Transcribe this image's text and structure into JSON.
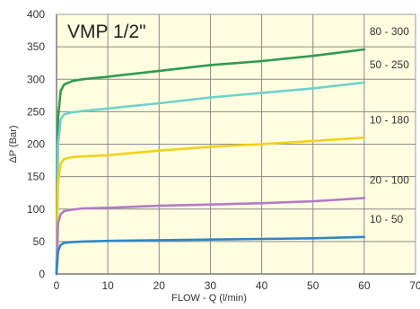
{
  "chart_data": {
    "type": "line",
    "title": "VMP 1/2\"",
    "xlabel": "FLOW - Q (l/min)",
    "ylabel": "ΔP (Bar)",
    "xlim": [
      0,
      70
    ],
    "ylim": [
      0,
      400
    ],
    "xticks": [
      "0",
      "10",
      "20",
      "30",
      "40",
      "50",
      "60",
      "70"
    ],
    "yticks": [
      "0",
      "50",
      "100",
      "150",
      "200",
      "250",
      "300",
      "350",
      "400"
    ],
    "grid": true,
    "colors": {
      "background": "#fffde0",
      "grid": "#8a8a8a",
      "axis": "#3a3a3a"
    },
    "series": [
      {
        "name": "80 - 300",
        "color": "#2f9a52",
        "x": [
          0,
          0.3,
          0.8,
          1.5,
          3,
          5,
          10,
          20,
          30,
          40,
          50,
          60
        ],
        "y": [
          0,
          240,
          282,
          292,
          297,
          300,
          304,
          313,
          322,
          328,
          336,
          346
        ]
      },
      {
        "name": "50 - 250",
        "color": "#6fd1cd",
        "x": [
          0,
          0.3,
          0.8,
          1.5,
          3,
          5,
          10,
          20,
          30,
          40,
          50,
          60
        ],
        "y": [
          0,
          200,
          238,
          246,
          249,
          251,
          255,
          263,
          272,
          279,
          286,
          295
        ]
      },
      {
        "name": "10 - 180",
        "color": "#f2d21a",
        "x": [
          0,
          0.3,
          0.8,
          1.5,
          3,
          5,
          10,
          20,
          30,
          40,
          50,
          60
        ],
        "y": [
          0,
          140,
          170,
          177,
          180,
          181,
          183,
          190,
          196,
          200,
          205,
          210
        ]
      },
      {
        "name": "20 - 100",
        "color": "#b07cc8",
        "x": [
          0,
          0.3,
          0.8,
          1.5,
          3,
          5,
          10,
          20,
          30,
          40,
          50,
          60
        ],
        "y": [
          0,
          78,
          92,
          97,
          99,
          101,
          102,
          105,
          107,
          109,
          112,
          117
        ]
      },
      {
        "name": "10 - 50",
        "color": "#2e86c7",
        "x": [
          0,
          0.3,
          0.8,
          1.5,
          3,
          5,
          10,
          20,
          30,
          40,
          50,
          60
        ],
        "y": [
          0,
          35,
          45,
          48,
          49,
          50,
          51,
          52,
          53,
          54,
          55,
          57
        ]
      }
    ]
  }
}
